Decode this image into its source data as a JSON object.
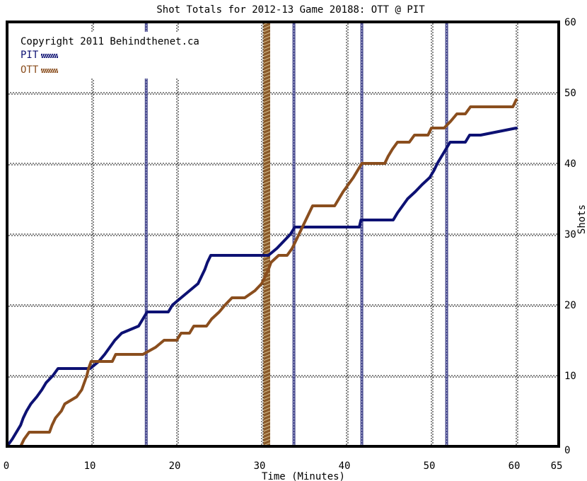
{
  "chart_data": {
    "type": "line",
    "title": "Shot Totals for 2012-13 Game 20188: OTT @ PIT",
    "xlabel": "Time (Minutes)",
    "ylabel": "Shots",
    "xlim": [
      0,
      65
    ],
    "ylim": [
      0,
      60
    ],
    "x_ticks": [
      "0",
      "10",
      "20",
      "30",
      "40",
      "50",
      "60",
      "65"
    ],
    "y_ticks": [
      "0",
      "10",
      "20",
      "30",
      "40",
      "50",
      "60"
    ],
    "grid": true,
    "legend_position": "top-left",
    "copyright": "Copyright 2011 Behindthenet.ca",
    "series": [
      {
        "name": "PIT",
        "color": "#0d1173",
        "points": [
          [
            0,
            0
          ],
          [
            0.6,
            1
          ],
          [
            1.1,
            2
          ],
          [
            1.6,
            3
          ],
          [
            1.9,
            4
          ],
          [
            2.3,
            5
          ],
          [
            2.8,
            6
          ],
          [
            3.5,
            7
          ],
          [
            4.1,
            8
          ],
          [
            4.6,
            9
          ],
          [
            5.4,
            10
          ],
          [
            6,
            11
          ],
          [
            9.8,
            11
          ],
          [
            10.8,
            12
          ],
          [
            11.5,
            13
          ],
          [
            12.1,
            14
          ],
          [
            12.7,
            15
          ],
          [
            13.5,
            16
          ],
          [
            15.5,
            17
          ],
          [
            16,
            18
          ],
          [
            16.5,
            19
          ],
          [
            19,
            19
          ],
          [
            19.5,
            20
          ],
          [
            20.5,
            21
          ],
          [
            21.5,
            22
          ],
          [
            22.5,
            23
          ],
          [
            22.9,
            24
          ],
          [
            23.3,
            25
          ],
          [
            23.6,
            26
          ],
          [
            24,
            27
          ],
          [
            30.8,
            27
          ],
          [
            31.8,
            28
          ],
          [
            32.6,
            29
          ],
          [
            33.4,
            30
          ],
          [
            33.9,
            31
          ],
          [
            41.5,
            31
          ],
          [
            41.7,
            32
          ],
          [
            45.5,
            32
          ],
          [
            46,
            33
          ],
          [
            46.6,
            34
          ],
          [
            47.2,
            35
          ],
          [
            48.1,
            36
          ],
          [
            48.9,
            37
          ],
          [
            49.8,
            38
          ],
          [
            50.3,
            39
          ],
          [
            50.7,
            40
          ],
          [
            51.2,
            41
          ],
          [
            51.7,
            42
          ],
          [
            52.2,
            43
          ],
          [
            54,
            43
          ],
          [
            54.5,
            44
          ],
          [
            55.8,
            44
          ],
          [
            60,
            45
          ]
        ]
      },
      {
        "name": "OTT",
        "color": "#8a4e1e",
        "points": [
          [
            0,
            0
          ],
          [
            1.6,
            0
          ],
          [
            2,
            1
          ],
          [
            2.6,
            2
          ],
          [
            5,
            2
          ],
          [
            5.3,
            3
          ],
          [
            5.7,
            4
          ],
          [
            6.4,
            5
          ],
          [
            6.8,
            6
          ],
          [
            8.2,
            7
          ],
          [
            8.8,
            8
          ],
          [
            9.1,
            9
          ],
          [
            9.4,
            10
          ],
          [
            9.6,
            11
          ],
          [
            9.9,
            12
          ],
          [
            12.4,
            12
          ],
          [
            12.8,
            13
          ],
          [
            16,
            13
          ],
          [
            17.5,
            14
          ],
          [
            18.5,
            15
          ],
          [
            20,
            15
          ],
          [
            20.5,
            16
          ],
          [
            21.5,
            16
          ],
          [
            22,
            17
          ],
          [
            23.5,
            17
          ],
          [
            24.1,
            18
          ],
          [
            25,
            19
          ],
          [
            25.7,
            20
          ],
          [
            26.5,
            21
          ],
          [
            28,
            21
          ],
          [
            29.2,
            22
          ],
          [
            30,
            23
          ],
          [
            30.4,
            24
          ],
          [
            30.8,
            25
          ],
          [
            31.1,
            26
          ],
          [
            32,
            27
          ],
          [
            33,
            27
          ],
          [
            33.6,
            28
          ],
          [
            34,
            29
          ],
          [
            34.4,
            30
          ],
          [
            34.8,
            31
          ],
          [
            35.2,
            32
          ],
          [
            35.6,
            33
          ],
          [
            36,
            34
          ],
          [
            38.6,
            34
          ],
          [
            39.1,
            35
          ],
          [
            39.6,
            36
          ],
          [
            40.2,
            37
          ],
          [
            40.8,
            38
          ],
          [
            41.3,
            39
          ],
          [
            41.8,
            40
          ],
          [
            44.5,
            40
          ],
          [
            44.9,
            41
          ],
          [
            45.4,
            42
          ],
          [
            46,
            43
          ],
          [
            47.4,
            43
          ],
          [
            48,
            44
          ],
          [
            49.6,
            44
          ],
          [
            50,
            45
          ],
          [
            51.5,
            45
          ],
          [
            52.3,
            46
          ],
          [
            53,
            47
          ],
          [
            54,
            47
          ],
          [
            54.6,
            48
          ],
          [
            59.6,
            48
          ],
          [
            60,
            49
          ]
        ]
      }
    ],
    "bands": [
      {
        "type": "single",
        "x": 16.4,
        "color": "#4a4c90"
      },
      {
        "type": "single",
        "x": 33.8,
        "color": "#4a4c90"
      },
      {
        "type": "single",
        "x": 41.8,
        "color": "#4a4c90"
      },
      {
        "type": "single",
        "x": 51.8,
        "color": "#4a4c90"
      },
      {
        "type": "wide",
        "x": 30.2,
        "x2": 31,
        "color": "#8a5a2a"
      }
    ]
  }
}
